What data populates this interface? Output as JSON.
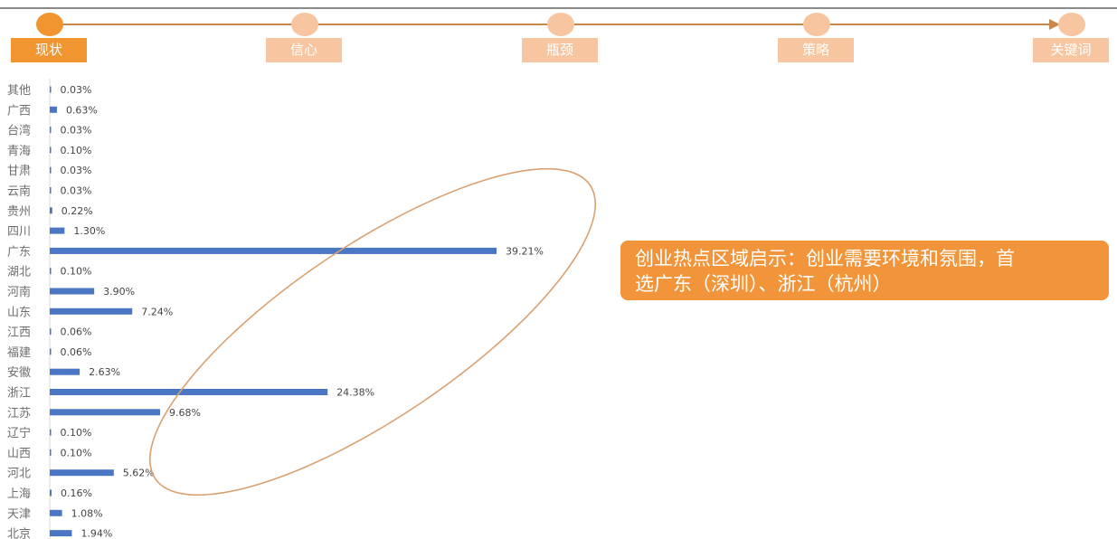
{
  "timeline": {
    "steps": [
      {
        "label": "现状",
        "active": true
      },
      {
        "label": "信心",
        "active": false
      },
      {
        "label": "瓶颈",
        "active": false
      },
      {
        "label": "策略",
        "active": false
      },
      {
        "label": "关键词",
        "active": false
      }
    ]
  },
  "colors": {
    "bar": "#4a76c3",
    "accent": "#f0952f",
    "accent_light": "#f7c5a0",
    "ellipse": "#d9a070"
  },
  "callout": {
    "line1": "创业热点区域启示：创业需要环境和氛围，首",
    "line2": "选广东（深圳）、浙江（杭州）"
  },
  "chart_data": {
    "type": "bar",
    "orientation": "horizontal",
    "categories": [
      "其他",
      "广西",
      "台湾",
      "青海",
      "甘肃",
      "云南",
      "贵州",
      "四川",
      "广东",
      "湖北",
      "河南",
      "山东",
      "江西",
      "福建",
      "安徽",
      "浙江",
      "江苏",
      "辽宁",
      "山西",
      "河北",
      "上海",
      "天津",
      "北京"
    ],
    "values": [
      0.03,
      0.63,
      0.03,
      0.1,
      0.03,
      0.03,
      0.22,
      1.3,
      39.21,
      0.1,
      3.9,
      7.24,
      0.06,
      0.06,
      2.63,
      24.38,
      9.68,
      0.1,
      0.1,
      5.62,
      0.16,
      1.08,
      1.94
    ],
    "labels": [
      "0.03%",
      "0.63%",
      "0.03%",
      "0.10%",
      "0.03%",
      "0.03%",
      "0.22%",
      "1.30%",
      "39.21%",
      "0.10%",
      "3.90%",
      "7.24%",
      "0.06%",
      "0.06%",
      "2.63%",
      "24.38%",
      "9.68%",
      "0.10%",
      "0.10%",
      "5.62%",
      "0.16%",
      "1.08%",
      "1.94%"
    ],
    "unit": "%",
    "grid": false,
    "legend": "none"
  }
}
